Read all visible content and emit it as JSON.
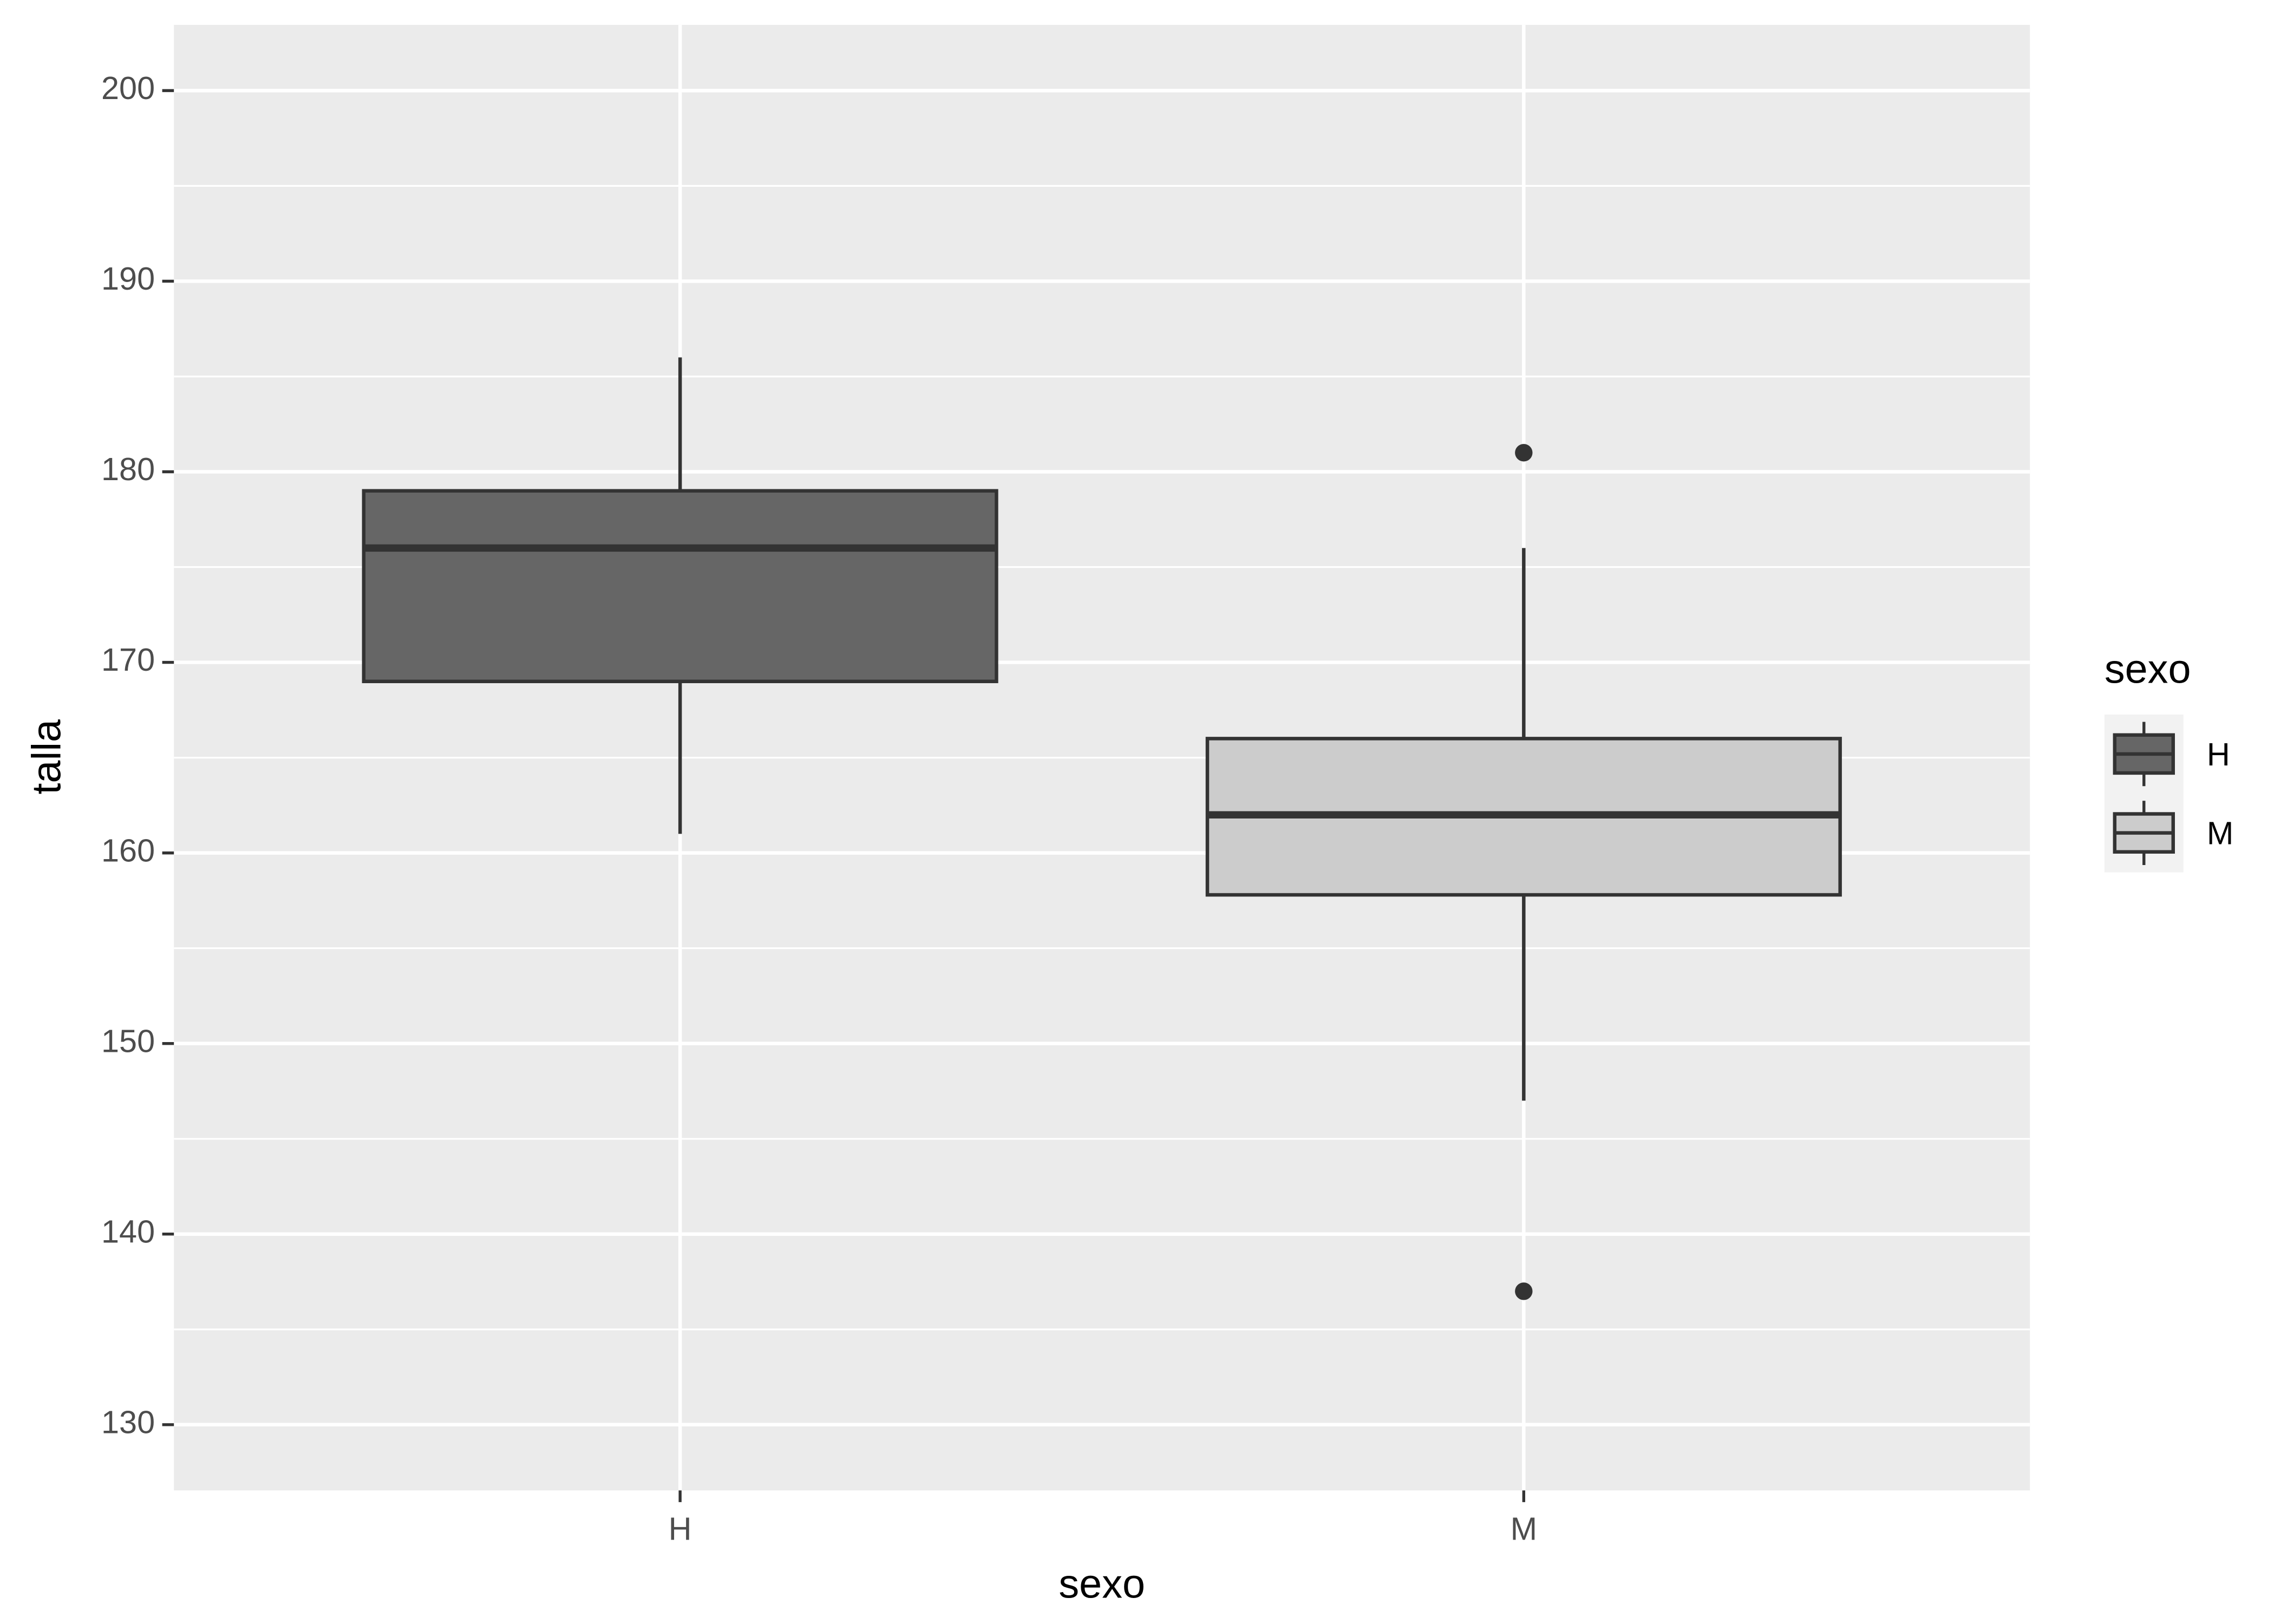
{
  "chart_data": {
    "type": "boxplot",
    "x_label": "sexo",
    "y_label": "talla",
    "legend_title": "sexo",
    "categories": [
      "H",
      "M"
    ],
    "boxes": [
      {
        "name": "H",
        "color": "#666666",
        "whislo": 161,
        "q1": 169,
        "med": 176,
        "q3": 179,
        "whishi": 186,
        "fliers": []
      },
      {
        "name": "M",
        "color": "#cccccc",
        "whislo": 147,
        "q1": 157.8,
        "med": 162,
        "q3": 166,
        "whishi": 176,
        "fliers": [
          181,
          137
        ]
      }
    ],
    "ylim": [
      126.55,
      203.45
    ],
    "yticks": [
      130,
      140,
      150,
      160,
      170,
      180,
      190,
      200
    ],
    "grid": true,
    "legend": "right"
  }
}
